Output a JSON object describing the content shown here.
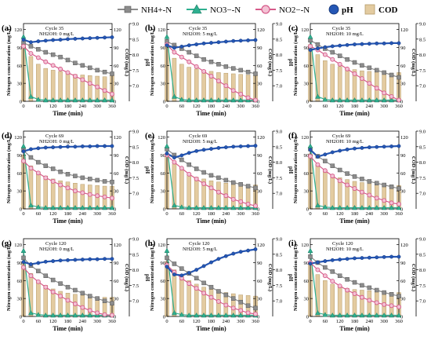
{
  "legend": {
    "nh4": "NH4+-N",
    "no3": "NO3−-N",
    "no2": "NO2−-N",
    "ph": "pH",
    "cod": "COD"
  },
  "colors": {
    "nh4": "#8c8c8c",
    "no3": "#2eaf8f",
    "no2": "#d65a8a",
    "ph": "#2456b4",
    "cod": "#e3cba0"
  },
  "chart_data": [
    {
      "type": "line",
      "panel": "(a)",
      "cycle": "Cycle 35",
      "dose": "NH2OH: 0 mg/L",
      "x": [
        0,
        30,
        60,
        90,
        120,
        150,
        180,
        210,
        240,
        270,
        300,
        330,
        360
      ],
      "xlabel": "Time (min)",
      "ylabel": "Nitrogen concentration (mg/L)",
      "ylabel2": "COD (mg/L)",
      "ylabel3": "pH",
      "xlim": [
        0,
        360
      ],
      "ylim": [
        0,
        130
      ],
      "ph_lim": [
        6.5,
        9.0
      ],
      "series": [
        {
          "name": "NH4+-N",
          "values": [
            98,
            92,
            87,
            82,
            78,
            74,
            69,
            64,
            60,
            56,
            52,
            49,
            46
          ]
        },
        {
          "name": "NO3−-N",
          "values": [
            108,
            8,
            3,
            2,
            2,
            2,
            2,
            2,
            2,
            2,
            2,
            2,
            2
          ]
        },
        {
          "name": "NO2−-N",
          "values": [
            92,
            80,
            73,
            66,
            60,
            54,
            48,
            42,
            36,
            30,
            24,
            18,
            12
          ]
        },
        {
          "name": "pH",
          "values": [
            8.48,
            8.4,
            8.43,
            8.45,
            8.47,
            8.48,
            8.5,
            8.51,
            8.52,
            8.53,
            8.54,
            8.55,
            8.56
          ]
        },
        {
          "name": "COD",
          "values": [
            95,
            75,
            62,
            55,
            52,
            50,
            47,
            45,
            44,
            43,
            42,
            41,
            45
          ]
        }
      ]
    },
    {
      "type": "line",
      "panel": "(b)",
      "cycle": "Cycle 35",
      "dose": "NH2OH: 5 mg/L",
      "x": [
        0,
        30,
        60,
        90,
        120,
        150,
        180,
        210,
        240,
        270,
        300,
        330,
        360
      ],
      "xlabel": "Time (min)",
      "ylabel": "Nitrogen concentration (mg/L)",
      "ylabel2": "COD (mg/L)",
      "ylabel3": "pH",
      "xlim": [
        0,
        360
      ],
      "ylim": [
        0,
        130
      ],
      "ph_lim": [
        6.5,
        9.0
      ],
      "series": [
        {
          "name": "NH4+-N",
          "values": [
            100,
            94,
            88,
            82,
            76,
            70,
            66,
            62,
            58,
            55,
            52,
            49,
            46
          ]
        },
        {
          "name": "NO3−-N",
          "values": [
            108,
            8,
            3,
            2,
            2,
            2,
            2,
            2,
            2,
            2,
            2,
            2,
            2
          ]
        },
        {
          "name": "NO2−-N",
          "values": [
            95,
            82,
            74,
            66,
            58,
            50,
            42,
            34,
            26,
            18,
            12,
            6,
            2
          ]
        },
        {
          "name": "pH",
          "values": [
            8.3,
            8.22,
            8.26,
            8.3,
            8.33,
            8.36,
            8.38,
            8.4,
            8.42,
            8.44,
            8.45,
            8.46,
            8.47
          ]
        },
        {
          "name": "COD",
          "values": [
            95,
            72,
            62,
            57,
            54,
            52,
            50,
            48,
            47,
            46,
            45,
            44,
            44
          ]
        }
      ]
    },
    {
      "type": "line",
      "panel": "(c)",
      "cycle": "Cycle 35",
      "dose": "NH2OH: 10 mg/L",
      "x": [
        0,
        30,
        60,
        90,
        120,
        150,
        180,
        210,
        240,
        270,
        300,
        330,
        360
      ],
      "xlabel": "Time (min)",
      "ylabel": "Nitrogen concentration (mg/L)",
      "ylabel2": "COD (mg/L)",
      "ylabel3": "pH",
      "xlim": [
        0,
        360
      ],
      "ylim": [
        0,
        130
      ],
      "ph_lim": [
        6.5,
        9.0
      ],
      "series": [
        {
          "name": "NH4+-N",
          "values": [
            102,
            95,
            88,
            82,
            76,
            70,
            65,
            60,
            56,
            52,
            48,
            44,
            40
          ]
        },
        {
          "name": "NO3−-N",
          "values": [
            108,
            8,
            3,
            2,
            2,
            2,
            2,
            2,
            2,
            2,
            2,
            2,
            2
          ]
        },
        {
          "name": "NO2−-N",
          "values": [
            92,
            86,
            78,
            70,
            62,
            54,
            46,
            38,
            30,
            22,
            14,
            8,
            2
          ]
        },
        {
          "name": "pH",
          "values": [
            8.15,
            8.2,
            8.24,
            8.27,
            8.29,
            8.31,
            8.33,
            8.34,
            8.35,
            8.36,
            8.36,
            8.37,
            8.37
          ]
        },
        {
          "name": "COD",
          "values": [
            95,
            78,
            68,
            62,
            58,
            55,
            53,
            51,
            50,
            49,
            48,
            47,
            48
          ]
        }
      ]
    },
    {
      "type": "line",
      "panel": "(d)",
      "cycle": "Cycle 69",
      "dose": "NH2OH: 0 mg/L",
      "x": [
        0,
        30,
        60,
        90,
        120,
        150,
        180,
        210,
        240,
        270,
        300,
        330,
        360
      ],
      "xlabel": "Time (min)",
      "ylabel": "Nitrogen concentration (mg/L)",
      "ylabel2": "COD (mg/L)",
      "ylabel3": "pH",
      "xlim": [
        0,
        360
      ],
      "ylim": [
        0,
        130
      ],
      "ph_lim": [
        6.5,
        9.0
      ],
      "series": [
        {
          "name": "NH4+-N",
          "values": [
            98,
            86,
            78,
            72,
            67,
            62,
            58,
            55,
            52,
            50,
            48,
            46,
            45
          ]
        },
        {
          "name": "NO3−-N",
          "values": [
            105,
            6,
            3,
            2,
            2,
            2,
            2,
            2,
            2,
            2,
            2,
            2,
            2
          ]
        },
        {
          "name": "NO2−-N",
          "values": [
            80,
            68,
            60,
            52,
            46,
            40,
            35,
            30,
            27,
            24,
            22,
            20,
            18
          ]
        },
        {
          "name": "pH",
          "values": [
            8.35,
            8.42,
            8.45,
            8.47,
            8.48,
            8.49,
            8.5,
            8.5,
            8.51,
            8.51,
            8.52,
            8.52,
            8.52
          ]
        },
        {
          "name": "COD",
          "values": [
            90,
            72,
            62,
            55,
            50,
            47,
            45,
            43,
            41,
            40,
            39,
            38,
            38
          ]
        }
      ]
    },
    {
      "type": "line",
      "panel": "(e)",
      "cycle": "Cycle 69",
      "dose": "NH2OH: 5 mg/L",
      "x": [
        0,
        30,
        60,
        90,
        120,
        150,
        180,
        210,
        240,
        270,
        300,
        330,
        360
      ],
      "xlabel": "Time (min)",
      "ylabel": "Nitrogen concentration (mg/L)",
      "ylabel2": "COD (mg/L)",
      "ylabel3": "pH",
      "xlim": [
        0,
        360
      ],
      "ylim": [
        0,
        130
      ],
      "ph_lim": [
        6.5,
        9.0
      ],
      "series": [
        {
          "name": "NH4+-N",
          "values": [
            100,
            90,
            82,
            74,
            67,
            61,
            56,
            52,
            48,
            44,
            41,
            38,
            35
          ]
        },
        {
          "name": "NO3−-N",
          "values": [
            105,
            6,
            3,
            2,
            2,
            2,
            2,
            2,
            2,
            2,
            2,
            2,
            2
          ]
        },
        {
          "name": "NO2−-N",
          "values": [
            90,
            78,
            68,
            58,
            50,
            42,
            35,
            28,
            22,
            16,
            12,
            8,
            5
          ]
        },
        {
          "name": "pH",
          "values": [
            8.28,
            8.15,
            8.22,
            8.3,
            8.36,
            8.4,
            8.43,
            8.46,
            8.48,
            8.5,
            8.51,
            8.52,
            8.53
          ]
        },
        {
          "name": "COD",
          "values": [
            92,
            75,
            65,
            58,
            53,
            50,
            47,
            45,
            43,
            42,
            41,
            40,
            40
          ]
        }
      ]
    },
    {
      "type": "line",
      "panel": "(f)",
      "cycle": "Cycle 69",
      "dose": "NH2OH: 10 mg/L",
      "x": [
        0,
        30,
        60,
        90,
        120,
        150,
        180,
        210,
        240,
        270,
        300,
        330,
        360
      ],
      "xlabel": "Time (min)",
      "ylabel": "Nitrogen concentration (mg/L)",
      "ylabel2": "COD (mg/L)",
      "ylabel3": "pH",
      "xlim": [
        0,
        360
      ],
      "ylim": [
        0,
        130
      ],
      "ph_lim": [
        6.5,
        9.0
      ],
      "series": [
        {
          "name": "NH4+-N",
          "values": [
            100,
            88,
            80,
            72,
            65,
            59,
            54,
            50,
            46,
            43,
            40,
            37,
            34
          ]
        },
        {
          "name": "NO3−-N",
          "values": [
            105,
            6,
            3,
            2,
            2,
            2,
            2,
            2,
            2,
            2,
            2,
            2,
            2
          ]
        },
        {
          "name": "NO2−-N",
          "values": [
            88,
            74,
            64,
            55,
            47,
            40,
            34,
            28,
            23,
            18,
            14,
            10,
            8
          ]
        },
        {
          "name": "pH",
          "values": [
            8.4,
            8.18,
            8.25,
            8.32,
            8.37,
            8.41,
            8.44,
            8.46,
            8.48,
            8.49,
            8.5,
            8.51,
            8.52
          ]
        },
        {
          "name": "COD",
          "values": [
            92,
            74,
            64,
            57,
            52,
            49,
            46,
            44,
            42,
            41,
            40,
            39,
            39
          ]
        }
      ]
    },
    {
      "type": "line",
      "panel": "(g)",
      "cycle": "Cycle 120",
      "dose": "NH2OH: 0 mg/L",
      "x": [
        0,
        30,
        60,
        90,
        120,
        150,
        180,
        210,
        240,
        270,
        300,
        330,
        360
      ],
      "xlabel": "Time (min)",
      "ylabel": "Nitrogen concentration (mg/L)",
      "ylabel2": "COD (mg/L)",
      "ylabel3": "pH",
      "xlim": [
        0,
        360
      ],
      "ylim": [
        0,
        130
      ],
      "ph_lim": [
        6.5,
        9.0
      ],
      "series": [
        {
          "name": "NH4+-N",
          "values": [
            98,
            85,
            76,
            68,
            61,
            55,
            49,
            44,
            39,
            34,
            30,
            26,
            22
          ]
        },
        {
          "name": "NO3−-N",
          "values": [
            110,
            6,
            3,
            2,
            2,
            2,
            2,
            2,
            2,
            2,
            2,
            2,
            2
          ]
        },
        {
          "name": "NO2−-N",
          "values": [
            82,
            68,
            58,
            49,
            41,
            34,
            27,
            21,
            15,
            10,
            6,
            3,
            2
          ]
        },
        {
          "name": "pH",
          "values": [
            8.25,
            8.18,
            8.22,
            8.26,
            8.28,
            8.3,
            8.31,
            8.32,
            8.33,
            8.34,
            8.34,
            8.35,
            8.35
          ]
        },
        {
          "name": "COD",
          "values": [
            90,
            72,
            60,
            52,
            46,
            42,
            39,
            37,
            35,
            34,
            33,
            32,
            32
          ]
        }
      ]
    },
    {
      "type": "line",
      "panel": "(h)",
      "cycle": "Cycle 120",
      "dose": "NH2OH: 5 mg/L",
      "x": [
        0,
        30,
        60,
        90,
        120,
        150,
        180,
        210,
        240,
        270,
        300,
        330,
        360
      ],
      "xlabel": "Time (min)",
      "ylabel": "Nitrogen concentration (mg/L)",
      "ylabel2": "COD (mg/L)",
      "ylabel3": "pH",
      "xlim": [
        0,
        360
      ],
      "ylim": [
        0,
        130
      ],
      "ph_lim": [
        6.5,
        9.0
      ],
      "series": [
        {
          "name": "NH4+-N",
          "values": [
            98,
            88,
            80,
            72,
            64,
            56,
            49,
            42,
            36,
            30,
            24,
            18,
            14
          ]
        },
        {
          "name": "NO3−-N",
          "values": [
            110,
            6,
            3,
            2,
            2,
            2,
            2,
            2,
            2,
            2,
            2,
            2,
            2
          ]
        },
        {
          "name": "NO2−-N",
          "values": [
            86,
            74,
            64,
            55,
            47,
            39,
            32,
            25,
            19,
            14,
            10,
            6,
            4
          ]
        },
        {
          "name": "pH",
          "values": [
            8.1,
            7.85,
            7.82,
            7.9,
            8.0,
            8.12,
            8.24,
            8.35,
            8.44,
            8.52,
            8.58,
            8.62,
            8.66
          ]
        },
        {
          "name": "COD",
          "values": [
            92,
            78,
            68,
            60,
            54,
            49,
            45,
            42,
            40,
            38,
            36,
            35,
            34
          ]
        }
      ]
    },
    {
      "type": "line",
      "panel": "(i)",
      "cycle": "Cycle 120",
      "dose": "NH2OH: 10 mg/L",
      "x": [
        0,
        30,
        60,
        90,
        120,
        150,
        180,
        210,
        240,
        270,
        300,
        330,
        360
      ],
      "xlabel": "Time (min)",
      "ylabel": "Nitrogen concentration (mg/L)",
      "ylabel2": "COD (mg/L)",
      "ylabel3": "pH",
      "xlim": [
        0,
        360
      ],
      "ylim": [
        0,
        130
      ],
      "ph_lim": [
        6.5,
        9.0
      ],
      "series": [
        {
          "name": "NH4+-N",
          "values": [
            100,
            90,
            82,
            75,
            68,
            62,
            57,
            52,
            48,
            44,
            40,
            37,
            34
          ]
        },
        {
          "name": "NO3−-N",
          "values": [
            110,
            6,
            3,
            2,
            2,
            2,
            2,
            2,
            2,
            2,
            2,
            2,
            2
          ]
        },
        {
          "name": "NO2−-N",
          "values": [
            90,
            78,
            68,
            59,
            51,
            44,
            38,
            32,
            27,
            23,
            20,
            18,
            16
          ]
        },
        {
          "name": "pH",
          "values": [
            8.2,
            8.24,
            8.28,
            8.31,
            8.33,
            8.35,
            8.37,
            8.38,
            8.39,
            8.4,
            8.41,
            8.42,
            8.42
          ]
        },
        {
          "name": "COD",
          "values": [
            88,
            70,
            60,
            54,
            50,
            47,
            45,
            44,
            43,
            42,
            41,
            40,
            40
          ]
        }
      ]
    }
  ]
}
